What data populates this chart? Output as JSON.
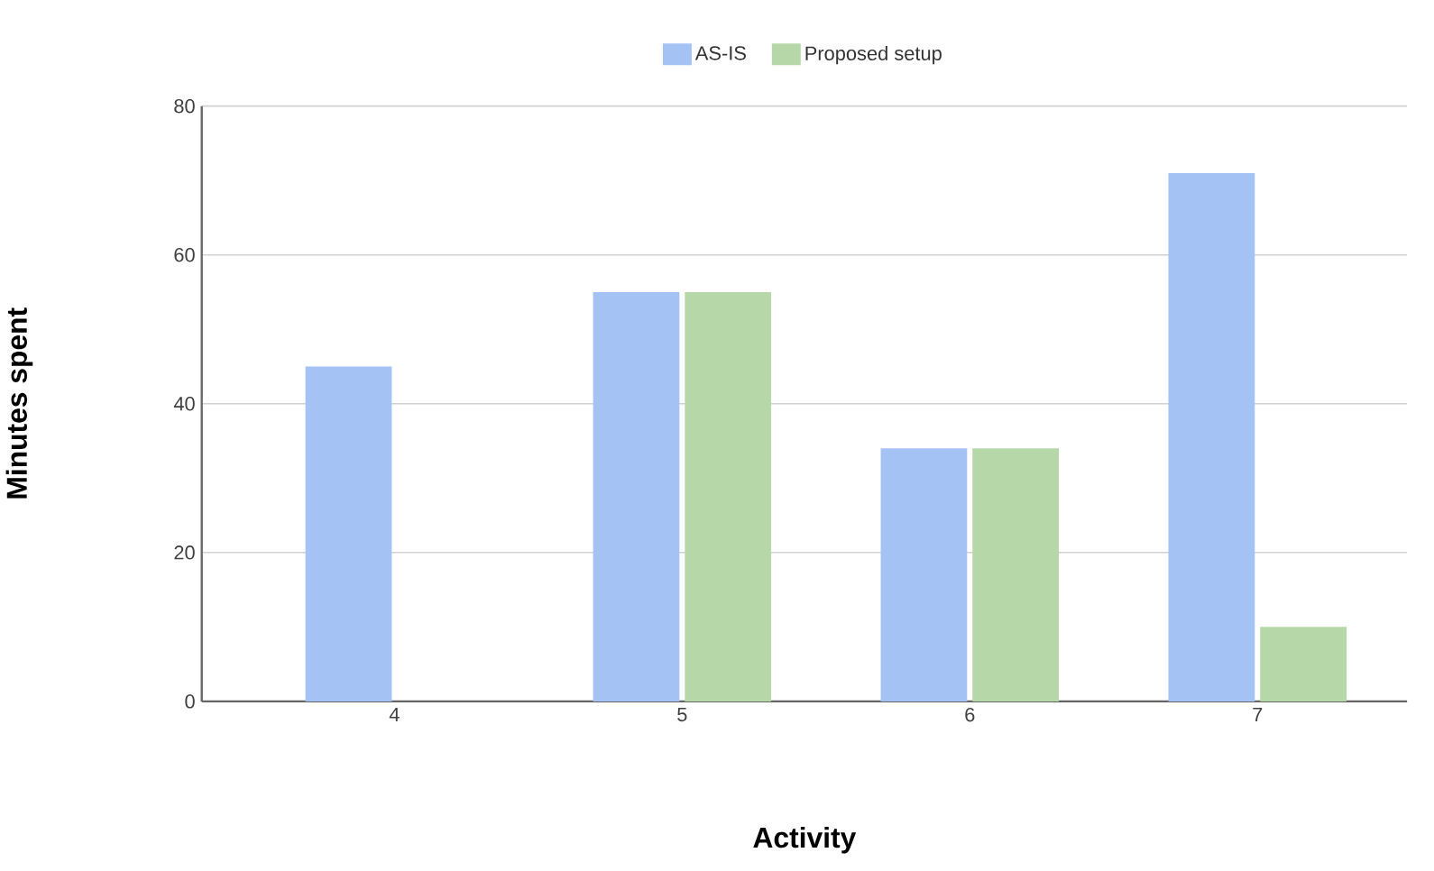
{
  "chart_data": {
    "type": "bar",
    "xlabel": "Activity",
    "ylabel": "Minutes spent",
    "categories": [
      "4",
      "5",
      "6",
      "7"
    ],
    "series": [
      {
        "name": "AS-IS",
        "color": "#a4c2f4",
        "values": [
          45,
          55,
          34,
          71
        ]
      },
      {
        "name": "Proposed setup",
        "color": "#b6d7a8",
        "values": [
          null,
          55,
          34,
          10
        ]
      }
    ],
    "ylim": [
      0,
      80
    ],
    "yticks": [
      0,
      20,
      40,
      60,
      80
    ],
    "grid": "y",
    "legend": "top"
  }
}
